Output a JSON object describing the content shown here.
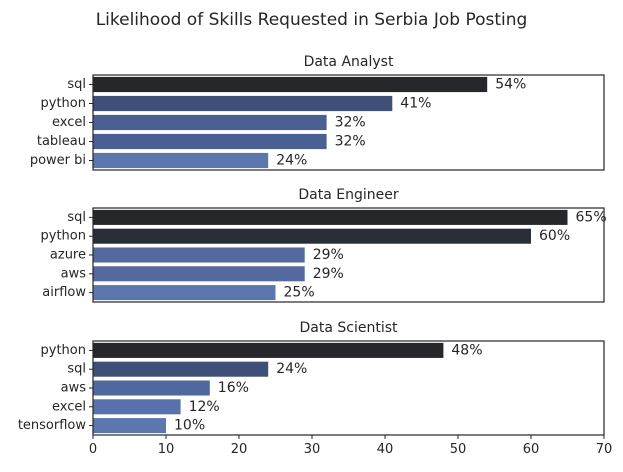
{
  "figure_title": "Likelihood of Skills Requested in Serbia Job Posting",
  "chart_data": [
    {
      "type": "bar",
      "orientation": "horizontal",
      "title": "Data Analyst",
      "categories": [
        "sql",
        "python",
        "excel",
        "tableau",
        "power bi"
      ],
      "values": [
        54,
        41,
        32,
        32,
        24
      ],
      "value_labels": [
        "54%",
        "41%",
        "32%",
        "32%",
        "24%"
      ],
      "colors": [
        "#26272b",
        "#3f4f77",
        "#4a6092",
        "#4a6092",
        "#5b77ae"
      ],
      "xlim": [
        0,
        70
      ],
      "show_xticks": false
    },
    {
      "type": "bar",
      "orientation": "horizontal",
      "title": "Data Engineer",
      "categories": [
        "sql",
        "python",
        "azure",
        "aws",
        "airflow"
      ],
      "values": [
        65,
        60,
        29,
        29,
        25
      ],
      "value_labels": [
        "65%",
        "60%",
        "29%",
        "29%",
        "25%"
      ],
      "colors": [
        "#26272b",
        "#282d38",
        "#55699f",
        "#55699f",
        "#5b77ae"
      ],
      "xlim": [
        0,
        70
      ],
      "show_xticks": false
    },
    {
      "type": "bar",
      "orientation": "horizontal",
      "title": "Data Scientist",
      "categories": [
        "python",
        "sql",
        "aws",
        "excel",
        "tensorflow"
      ],
      "values": [
        48,
        24,
        16,
        12,
        10
      ],
      "value_labels": [
        "48%",
        "24%",
        "16%",
        "12%",
        "10%"
      ],
      "colors": [
        "#26272b",
        "#3f4f77",
        "#5068a0",
        "#5871aa",
        "#5b77ae"
      ],
      "xlim": [
        0,
        70
      ],
      "show_xticks": true,
      "xticks": [
        0,
        10,
        20,
        30,
        40,
        50,
        60,
        70
      ],
      "xtick_labels": [
        "0",
        "10",
        "20",
        "30",
        "40",
        "50",
        "60",
        "70"
      ]
    }
  ]
}
